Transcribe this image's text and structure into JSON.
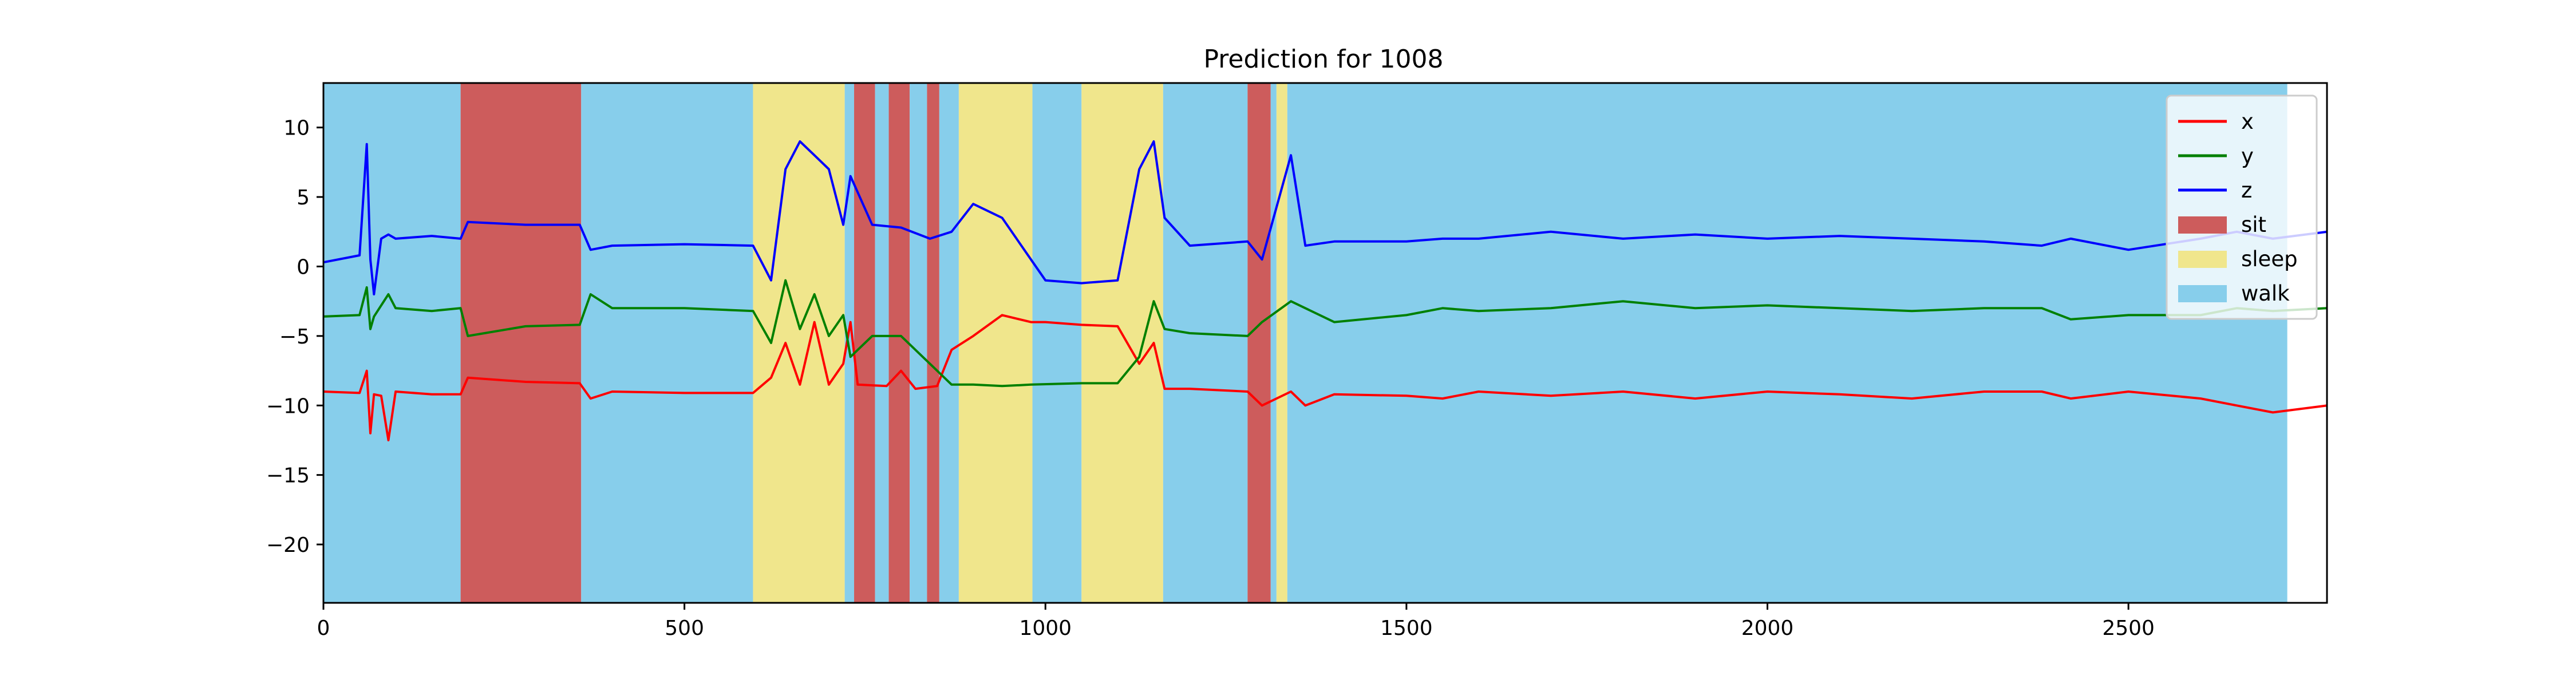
{
  "chart_data": {
    "type": "line",
    "title": "Prediction for 1008",
    "xlabel": "",
    "ylabel": "",
    "xlim": [
      0,
      2775
    ],
    "ylim": [
      -24.2,
      13.2
    ],
    "x_ticks": [
      0,
      500,
      1000,
      1500,
      2000,
      2500
    ],
    "y_ticks": [
      10,
      5,
      0,
      -5,
      -10,
      -15,
      -20
    ],
    "x_tick_labels": [
      "0",
      "500",
      "1000",
      "1500",
      "2000",
      "2500"
    ],
    "y_tick_labels": [
      "10",
      "5",
      "0",
      "−5",
      "−10",
      "−15",
      "−20"
    ],
    "grid": false,
    "legend_position": "top-right",
    "series": [
      {
        "name": "x",
        "color": "#ff0000",
        "points": [
          [
            0,
            -9.0
          ],
          [
            50,
            -9.1
          ],
          [
            60,
            -7.5
          ],
          [
            65,
            -12.0
          ],
          [
            70,
            -9.2
          ],
          [
            80,
            -9.3
          ],
          [
            90,
            -12.5
          ],
          [
            100,
            -9.0
          ],
          [
            150,
            -9.2
          ],
          [
            190,
            -9.2
          ],
          [
            200,
            -8.0
          ],
          [
            280,
            -8.3
          ],
          [
            355,
            -8.4
          ],
          [
            370,
            -9.5
          ],
          [
            400,
            -9.0
          ],
          [
            500,
            -9.1
          ],
          [
            595,
            -9.1
          ],
          [
            620,
            -8.0
          ],
          [
            640,
            -5.5
          ],
          [
            660,
            -8.5
          ],
          [
            680,
            -4.0
          ],
          [
            700,
            -8.5
          ],
          [
            720,
            -7.0
          ],
          [
            730,
            -4.0
          ],
          [
            740,
            -8.5
          ],
          [
            780,
            -8.6
          ],
          [
            800,
            -7.5
          ],
          [
            820,
            -8.8
          ],
          [
            850,
            -8.6
          ],
          [
            870,
            -6.0
          ],
          [
            900,
            -5.0
          ],
          [
            940,
            -3.5
          ],
          [
            980,
            -4.0
          ],
          [
            1000,
            -4.0
          ],
          [
            1050,
            -4.2
          ],
          [
            1100,
            -4.3
          ],
          [
            1130,
            -7.0
          ],
          [
            1150,
            -5.5
          ],
          [
            1165,
            -8.8
          ],
          [
            1200,
            -8.8
          ],
          [
            1280,
            -9.0
          ],
          [
            1300,
            -10.0
          ],
          [
            1340,
            -9.0
          ],
          [
            1360,
            -10.0
          ],
          [
            1400,
            -9.2
          ],
          [
            1500,
            -9.3
          ],
          [
            1550,
            -9.5
          ],
          [
            1600,
            -9.0
          ],
          [
            1700,
            -9.3
          ],
          [
            1800,
            -9.0
          ],
          [
            1900,
            -9.5
          ],
          [
            2000,
            -9.0
          ],
          [
            2100,
            -9.2
          ],
          [
            2200,
            -9.5
          ],
          [
            2300,
            -9.0
          ],
          [
            2380,
            -9.0
          ],
          [
            2420,
            -9.5
          ],
          [
            2500,
            -9.0
          ],
          [
            2600,
            -9.5
          ],
          [
            2650,
            -10.0
          ],
          [
            2700,
            -10.5
          ],
          [
            2775,
            -10.0
          ]
        ]
      },
      {
        "name": "y",
        "color": "#008000",
        "points": [
          [
            0,
            -3.6
          ],
          [
            50,
            -3.5
          ],
          [
            60,
            -1.5
          ],
          [
            65,
            -4.5
          ],
          [
            70,
            -3.6
          ],
          [
            90,
            -2.0
          ],
          [
            100,
            -3.0
          ],
          [
            150,
            -3.2
          ],
          [
            190,
            -3.0
          ],
          [
            200,
            -5.0
          ],
          [
            280,
            -4.3
          ],
          [
            355,
            -4.2
          ],
          [
            370,
            -2.0
          ],
          [
            400,
            -3.0
          ],
          [
            500,
            -3.0
          ],
          [
            595,
            -3.2
          ],
          [
            620,
            -5.5
          ],
          [
            640,
            -1.0
          ],
          [
            660,
            -4.5
          ],
          [
            680,
            -2.0
          ],
          [
            700,
            -5.0
          ],
          [
            720,
            -3.5
          ],
          [
            730,
            -6.5
          ],
          [
            760,
            -5.0
          ],
          [
            800,
            -5.0
          ],
          [
            840,
            -7.0
          ],
          [
            870,
            -8.5
          ],
          [
            900,
            -8.5
          ],
          [
            940,
            -8.6
          ],
          [
            980,
            -8.5
          ],
          [
            1050,
            -8.4
          ],
          [
            1100,
            -8.4
          ],
          [
            1130,
            -6.5
          ],
          [
            1150,
            -2.5
          ],
          [
            1165,
            -4.5
          ],
          [
            1200,
            -4.8
          ],
          [
            1280,
            -5.0
          ],
          [
            1300,
            -4.0
          ],
          [
            1340,
            -2.5
          ],
          [
            1360,
            -3.0
          ],
          [
            1400,
            -4.0
          ],
          [
            1500,
            -3.5
          ],
          [
            1550,
            -3.0
          ],
          [
            1600,
            -3.2
          ],
          [
            1700,
            -3.0
          ],
          [
            1800,
            -2.5
          ],
          [
            1900,
            -3.0
          ],
          [
            2000,
            -2.8
          ],
          [
            2100,
            -3.0
          ],
          [
            2200,
            -3.2
          ],
          [
            2300,
            -3.0
          ],
          [
            2380,
            -3.0
          ],
          [
            2420,
            -3.8
          ],
          [
            2500,
            -3.5
          ],
          [
            2600,
            -3.5
          ],
          [
            2650,
            -3.0
          ],
          [
            2700,
            -3.2
          ],
          [
            2775,
            -3.0
          ]
        ]
      },
      {
        "name": "z",
        "color": "#0000ff",
        "points": [
          [
            0,
            0.3
          ],
          [
            50,
            0.8
          ],
          [
            60,
            8.8
          ],
          [
            65,
            0.5
          ],
          [
            70,
            -2.0
          ],
          [
            80,
            2.0
          ],
          [
            90,
            2.3
          ],
          [
            100,
            2.0
          ],
          [
            150,
            2.2
          ],
          [
            190,
            2.0
          ],
          [
            200,
            3.2
          ],
          [
            280,
            3.0
          ],
          [
            355,
            3.0
          ],
          [
            370,
            1.2
          ],
          [
            400,
            1.5
          ],
          [
            500,
            1.6
          ],
          [
            595,
            1.5
          ],
          [
            620,
            -1.0
          ],
          [
            640,
            7.0
          ],
          [
            660,
            9.0
          ],
          [
            680,
            8.0
          ],
          [
            700,
            7.0
          ],
          [
            720,
            3.0
          ],
          [
            730,
            6.5
          ],
          [
            760,
            3.0
          ],
          [
            800,
            2.8
          ],
          [
            840,
            2.0
          ],
          [
            870,
            2.5
          ],
          [
            900,
            4.5
          ],
          [
            940,
            3.5
          ],
          [
            980,
            0.5
          ],
          [
            1000,
            -1.0
          ],
          [
            1050,
            -1.2
          ],
          [
            1100,
            -1.0
          ],
          [
            1130,
            7.0
          ],
          [
            1150,
            9.0
          ],
          [
            1165,
            3.5
          ],
          [
            1200,
            1.5
          ],
          [
            1280,
            1.8
          ],
          [
            1300,
            0.5
          ],
          [
            1340,
            8.0
          ],
          [
            1360,
            1.5
          ],
          [
            1400,
            1.8
          ],
          [
            1500,
            1.8
          ],
          [
            1550,
            2.0
          ],
          [
            1600,
            2.0
          ],
          [
            1700,
            2.5
          ],
          [
            1800,
            2.0
          ],
          [
            1900,
            2.3
          ],
          [
            2000,
            2.0
          ],
          [
            2100,
            2.2
          ],
          [
            2200,
            2.0
          ],
          [
            2300,
            1.8
          ],
          [
            2380,
            1.5
          ],
          [
            2420,
            2.0
          ],
          [
            2500,
            1.2
          ],
          [
            2600,
            2.0
          ],
          [
            2650,
            2.5
          ],
          [
            2700,
            2.0
          ],
          [
            2775,
            2.5
          ]
        ]
      }
    ],
    "background_bands": [
      {
        "label": "walk",
        "x0": 0,
        "x1": 190
      },
      {
        "label": "sit",
        "x0": 190,
        "x1": 357
      },
      {
        "label": "walk",
        "x0": 357,
        "x1": 595
      },
      {
        "label": "sleep",
        "x0": 595,
        "x1": 722
      },
      {
        "label": "walk",
        "x0": 722,
        "x1": 735
      },
      {
        "label": "sit",
        "x0": 735,
        "x1": 764
      },
      {
        "label": "walk",
        "x0": 764,
        "x1": 783
      },
      {
        "label": "sit",
        "x0": 783,
        "x1": 812
      },
      {
        "label": "walk",
        "x0": 812,
        "x1": 836
      },
      {
        "label": "sit",
        "x0": 836,
        "x1": 853
      },
      {
        "label": "walk",
        "x0": 853,
        "x1": 880
      },
      {
        "label": "sleep",
        "x0": 880,
        "x1": 982
      },
      {
        "label": "walk",
        "x0": 982,
        "x1": 1050
      },
      {
        "label": "sleep",
        "x0": 1050,
        "x1": 1163
      },
      {
        "label": "walk",
        "x0": 1163,
        "x1": 1280
      },
      {
        "label": "sit",
        "x0": 1280,
        "x1": 1312
      },
      {
        "label": "walk",
        "x0": 1312,
        "x1": 1320
      },
      {
        "label": "sleep",
        "x0": 1320,
        "x1": 1335
      },
      {
        "label": "walk",
        "x0": 1335,
        "x1": 2720
      }
    ],
    "band_colors": {
      "sit": "#cd5c5c",
      "sleep": "#f0e68c",
      "walk": "#87ceeb"
    },
    "legend": [
      {
        "label": "x",
        "kind": "line",
        "color": "#ff0000"
      },
      {
        "label": "y",
        "kind": "line",
        "color": "#008000"
      },
      {
        "label": "z",
        "kind": "line",
        "color": "#0000ff"
      },
      {
        "label": "sit",
        "kind": "patch",
        "color": "#cd5c5c"
      },
      {
        "label": "sleep",
        "kind": "patch",
        "color": "#f0e68c"
      },
      {
        "label": "walk",
        "kind": "patch",
        "color": "#87ceeb"
      }
    ]
  }
}
